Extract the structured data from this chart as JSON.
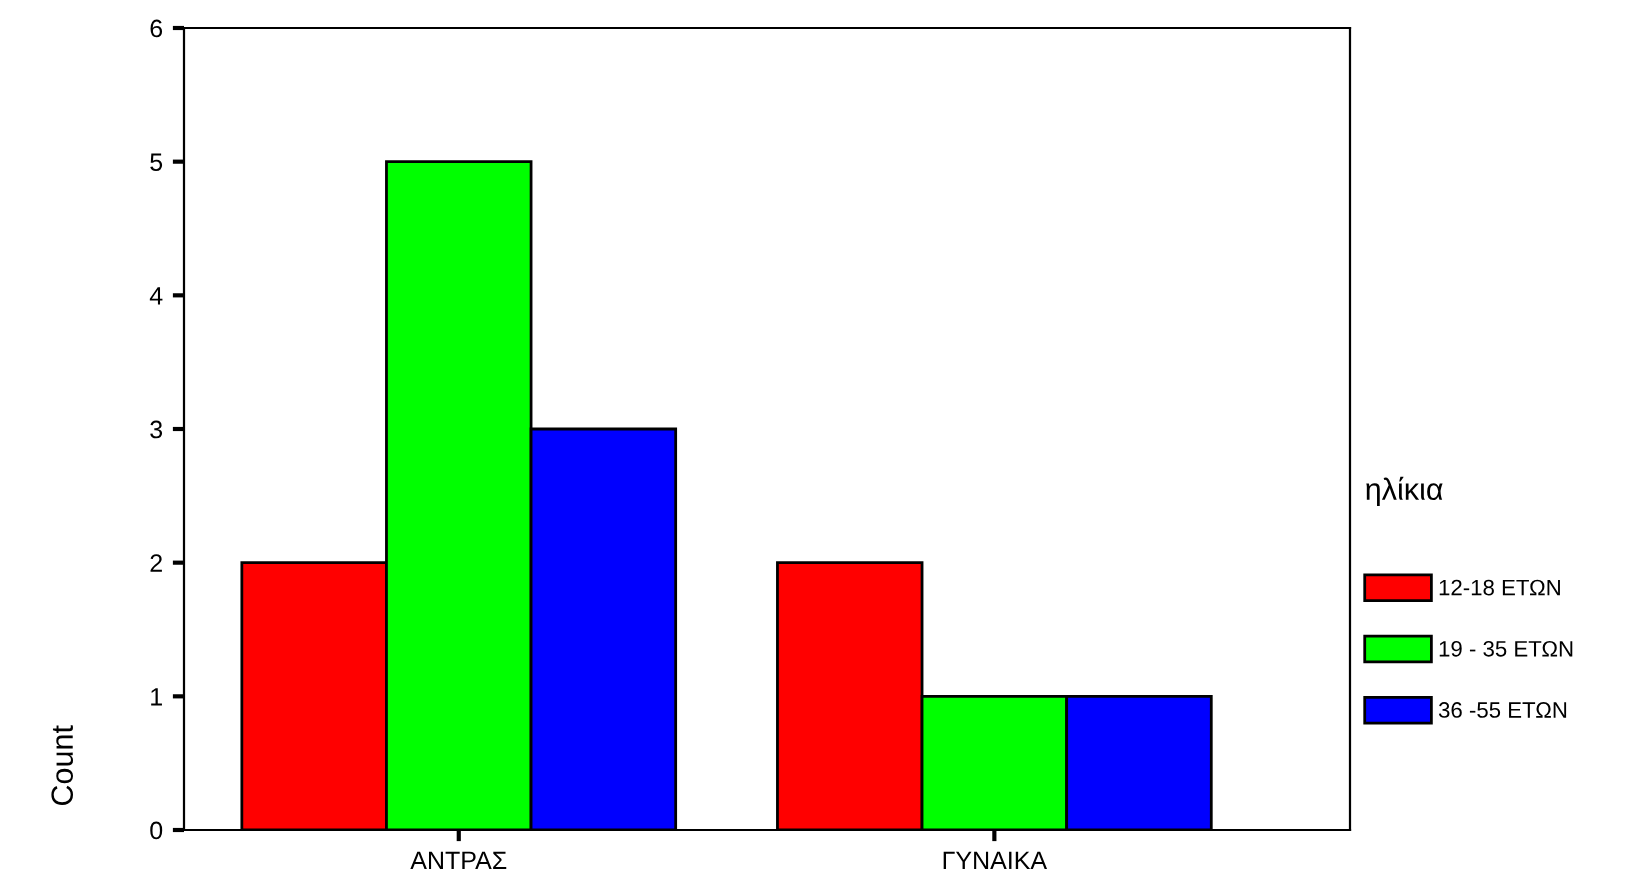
{
  "chart_data": {
    "type": "bar",
    "categories": [
      "ΑΝΤΡΑΣ",
      "ΓΥΝΑΙΚΑ"
    ],
    "series": [
      {
        "name": "12-18 ΕΤΩΝ",
        "color": "#ff0000",
        "values": [
          2,
          2
        ]
      },
      {
        "name": "19 - 35 ΕΤΩΝ",
        "color": "#00ff00",
        "values": [
          5,
          1
        ]
      },
      {
        "name": "36 -55 ΕΤΩΝ",
        "color": "#0000ff",
        "values": [
          3,
          1
        ]
      }
    ],
    "ylabel": "Count",
    "legend_title": "ηλίκια",
    "legend": "right",
    "ylim": [
      0,
      6
    ],
    "yticks": [
      0,
      1,
      2,
      3,
      4,
      5,
      6
    ],
    "grid": false
  }
}
